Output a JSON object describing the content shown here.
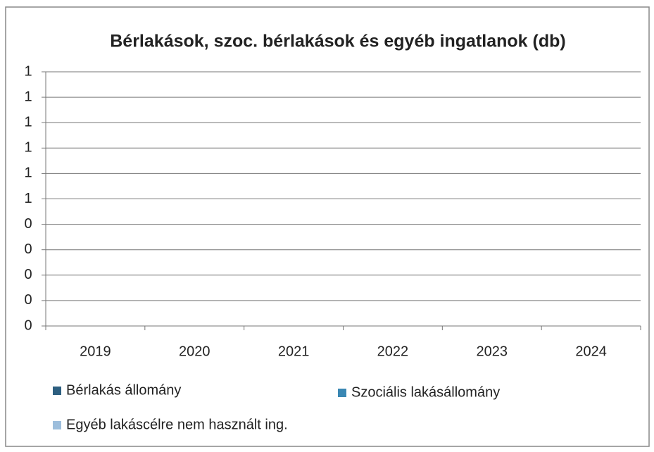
{
  "chart_data": {
    "type": "bar",
    "title": "Bérlakások, szoc. bérlakások és egyéb ingatlanok (db)",
    "categories": [
      "2019",
      "2020",
      "2021",
      "2022",
      "2023",
      "2024"
    ],
    "series": [
      {
        "name": "Bérlakás állomány",
        "color": "#2d5f80",
        "values": [
          0,
          0,
          0,
          0,
          0,
          0
        ]
      },
      {
        "name": "Szociális lakásállomány",
        "color": "#3a87b3",
        "values": [
          0,
          0,
          0,
          0,
          0,
          0
        ]
      },
      {
        "name": "Egyéb lakáscélre nem használt ing.",
        "color": "#9dbedc",
        "values": [
          0,
          0,
          0,
          0,
          0,
          0
        ]
      }
    ],
    "ylim": [
      0,
      1
    ],
    "yticks": [
      0,
      {
        "value": 0.1,
        "label": "0"
      },
      {
        "value": 0.2,
        "label": "0"
      },
      {
        "value": 0.3,
        "label": "0"
      },
      {
        "value": 0.4,
        "label": "0"
      },
      {
        "value": 0.5,
        "label": "1"
      },
      {
        "value": 0.6,
        "label": "1"
      },
      {
        "value": 0.7,
        "label": "1"
      },
      {
        "value": 0.8,
        "label": "1"
      },
      {
        "value": 0.9,
        "label": "1"
      },
      1
    ],
    "grid": true
  }
}
